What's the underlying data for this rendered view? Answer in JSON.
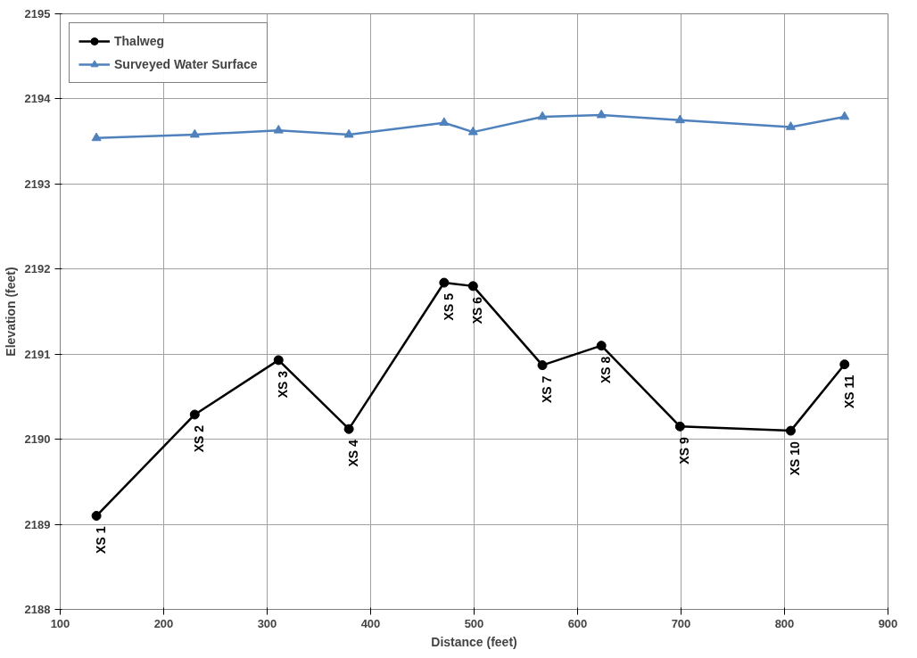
{
  "chart_data": {
    "type": "line",
    "xlabel": "Distance (feet)",
    "ylabel": "Elevation (feet)",
    "xlim": [
      100,
      900
    ],
    "xticks": [
      100,
      200,
      300,
      400,
      500,
      600,
      700,
      800,
      900
    ],
    "ylim": [
      2188,
      2195
    ],
    "yticks": [
      2188,
      2189,
      2190,
      2191,
      2192,
      2193,
      2194,
      2195
    ],
    "grid": true,
    "legend": "top left",
    "series": [
      {
        "name": "Thalweg",
        "color": "#000000",
        "marker": "circle",
        "x": [
          135,
          230,
          311,
          379,
          471,
          499,
          566,
          623,
          699,
          806,
          858
        ],
        "values": [
          2189.1,
          2190.29,
          2190.93,
          2190.12,
          2191.84,
          2191.8,
          2190.87,
          2191.1,
          2190.15,
          2190.1,
          2190.88
        ]
      },
      {
        "name": "Surveyed Water Surface",
        "color": "#4f81bd",
        "marker": "triangle",
        "x": [
          135,
          230,
          311,
          379,
          471,
          499,
          566,
          623,
          699,
          806,
          858
        ],
        "values": [
          2193.54,
          2193.58,
          2193.63,
          2193.58,
          2193.72,
          2193.61,
          2193.79,
          2193.81,
          2193.75,
          2193.67,
          2193.79
        ]
      }
    ],
    "annotations": [
      {
        "text": "XS 1",
        "x": 135,
        "y": 2189.1
      },
      {
        "text": "XS 2",
        "x": 230,
        "y": 2190.29
      },
      {
        "text": "XS 3",
        "x": 311,
        "y": 2190.93
      },
      {
        "text": "XS 4",
        "x": 379,
        "y": 2190.12
      },
      {
        "text": "XS 5",
        "x": 471,
        "y": 2191.84
      },
      {
        "text": "XS 6",
        "x": 499,
        "y": 2191.8
      },
      {
        "text": "XS 7",
        "x": 566,
        "y": 2190.87
      },
      {
        "text": "XS 8",
        "x": 623,
        "y": 2191.1
      },
      {
        "text": "XS 9",
        "x": 699,
        "y": 2190.15
      },
      {
        "text": "XS 10",
        "x": 806,
        "y": 2190.1
      },
      {
        "text": "XS 11",
        "x": 858,
        "y": 2190.88
      }
    ]
  }
}
